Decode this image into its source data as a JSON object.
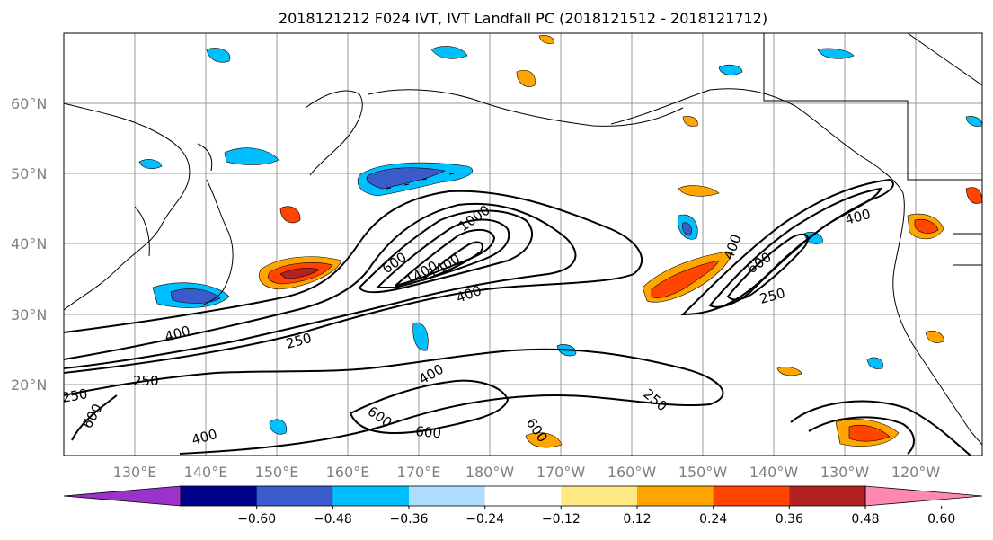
{
  "title": "2018121212 F024 IVT, IVT Landfall PC (2018121512 - 2018121712)",
  "lat_labels": [
    "60°N",
    "50°N",
    "40°N",
    "30°N",
    "20°N"
  ],
  "lon_labels": [
    "130°E",
    "140°E",
    "150°E",
    "160°E",
    "170°E",
    "180°W",
    "170°W",
    "160°W",
    "150°W",
    "140°W",
    "130°W",
    "120°W"
  ],
  "contour_labels": [
    "1000",
    "600",
    "1400",
    "1400",
    "400",
    "400",
    "600",
    "250",
    "400",
    "250",
    "250",
    "400",
    "600",
    "400",
    "600",
    "400",
    "250",
    "250",
    "600",
    "600",
    "400"
  ],
  "colorbar": {
    "colors": [
      "#9a33cc",
      "#000088",
      "#3a5bcc",
      "#00bfff",
      "#aeddff",
      "#ffffff",
      "#ffe984",
      "#ffa500",
      "#ff4500",
      "#b22222",
      "#ff88b0"
    ],
    "ticks": [
      "−0.60",
      "−0.48",
      "−0.36",
      "−0.24",
      "−0.12",
      "0.12",
      "0.24",
      "0.36",
      "0.48",
      "0.60"
    ]
  },
  "colors": {
    "land_line": "#000000",
    "grid": "#9a9a9a",
    "contour": "#000000"
  }
}
